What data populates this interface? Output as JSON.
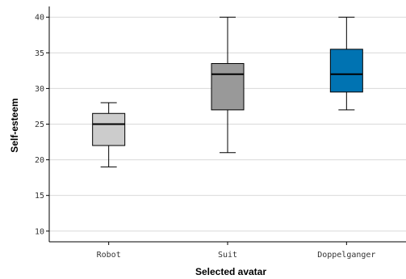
{
  "chart_data": {
    "type": "boxplot",
    "title": "",
    "xlabel": "Selected avatar",
    "ylabel": "Self-esteem",
    "ylim": [
      8.5,
      41.5
    ],
    "yticks": [
      10,
      15,
      20,
      25,
      30,
      35,
      40
    ],
    "grid": true,
    "categories": [
      "Robot",
      "Suit",
      "Doppelganger"
    ],
    "boxes": [
      {
        "category": "Robot",
        "min": 19,
        "q1": 22,
        "median": 25,
        "q3": 26.5,
        "max": 28,
        "color": "#cccccc"
      },
      {
        "category": "Suit",
        "min": 21,
        "q1": 27,
        "median": 32,
        "q3": 33.5,
        "max": 40,
        "color": "#999999"
      },
      {
        "category": "Doppelganger",
        "min": 27,
        "q1": 29.5,
        "median": 32,
        "q3": 35.5,
        "max": 40,
        "color": "#0073b2"
      }
    ]
  }
}
